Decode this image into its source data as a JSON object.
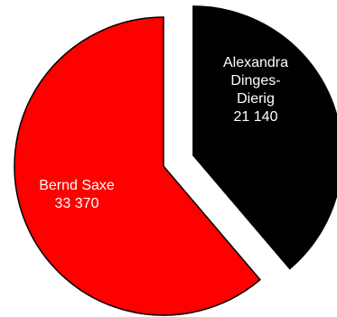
{
  "chart_data": {
    "type": "pie",
    "slices": [
      {
        "label_lines": [
          "Alexandra",
          "Dinges-",
          "Dierig"
        ],
        "value_text": "21 140",
        "value": 21140,
        "color": "#000000",
        "text_color": "#ffffff",
        "exploded": true
      },
      {
        "label_lines": [
          "Bernd Saxe"
        ],
        "value_text": "33 370",
        "value": 33370,
        "color": "#ff0000",
        "text_color": "#ffffff",
        "exploded": false
      }
    ],
    "legend": false,
    "outline_color": "#000000"
  }
}
